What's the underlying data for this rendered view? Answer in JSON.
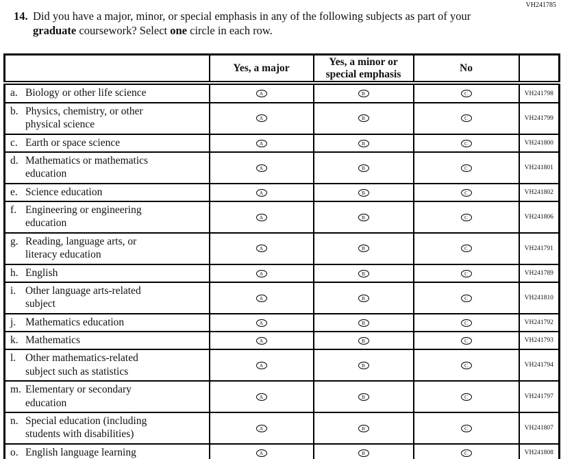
{
  "page": {
    "top_right_code": "VH241785"
  },
  "question": {
    "number": "14.",
    "part1": "Did you have a major, minor, or special emphasis in any of the following subjects as part of your ",
    "bold1": "graduate",
    "part2": " coursework? Select ",
    "bold2": "one",
    "part3": " circle in each row."
  },
  "table": {
    "columns": [
      "",
      "Yes, a major",
      "Yes, a minor or\nspecial emphasis",
      "No",
      ""
    ],
    "options": [
      "A",
      "B",
      "C"
    ],
    "rows": [
      {
        "letter": "a.",
        "label": "Biology or other life science",
        "code": "VH241798"
      },
      {
        "letter": "b.",
        "label": "Physics, chemistry, or other\nphysical science",
        "code": "VH241799"
      },
      {
        "letter": "c.",
        "label": "Earth or space science",
        "code": "VH241800"
      },
      {
        "letter": "d.",
        "label": "Mathematics or mathematics\neducation",
        "code": "VH241801"
      },
      {
        "letter": "e.",
        "label": "Science education",
        "code": "VH241802"
      },
      {
        "letter": "f.",
        "label": "Engineering or engineering\neducation",
        "code": "VH241806"
      },
      {
        "letter": "g.",
        "label": "Reading, language arts, or\nliteracy education",
        "code": "VH241791"
      },
      {
        "letter": "h.",
        "label": "English",
        "code": "VH241789"
      },
      {
        "letter": "i.",
        "label": "Other language arts-related\nsubject",
        "code": "VH241810"
      },
      {
        "letter": "j.",
        "label": "Mathematics education",
        "code": "VH241792"
      },
      {
        "letter": "k.",
        "label": "Mathematics",
        "code": "VH241793"
      },
      {
        "letter": "l.",
        "label": "Other mathematics-related\nsubject such as statistics",
        "code": "VH241794"
      },
      {
        "letter": "m.",
        "label": "Elementary or secondary\neducation",
        "code": "VH241797"
      },
      {
        "letter": "n.",
        "label": "Special education (including\nstudents with disabilities)",
        "code": "VH241807"
      },
      {
        "letter": "o.",
        "label": "English language learning",
        "code": "VH241808"
      }
    ]
  }
}
